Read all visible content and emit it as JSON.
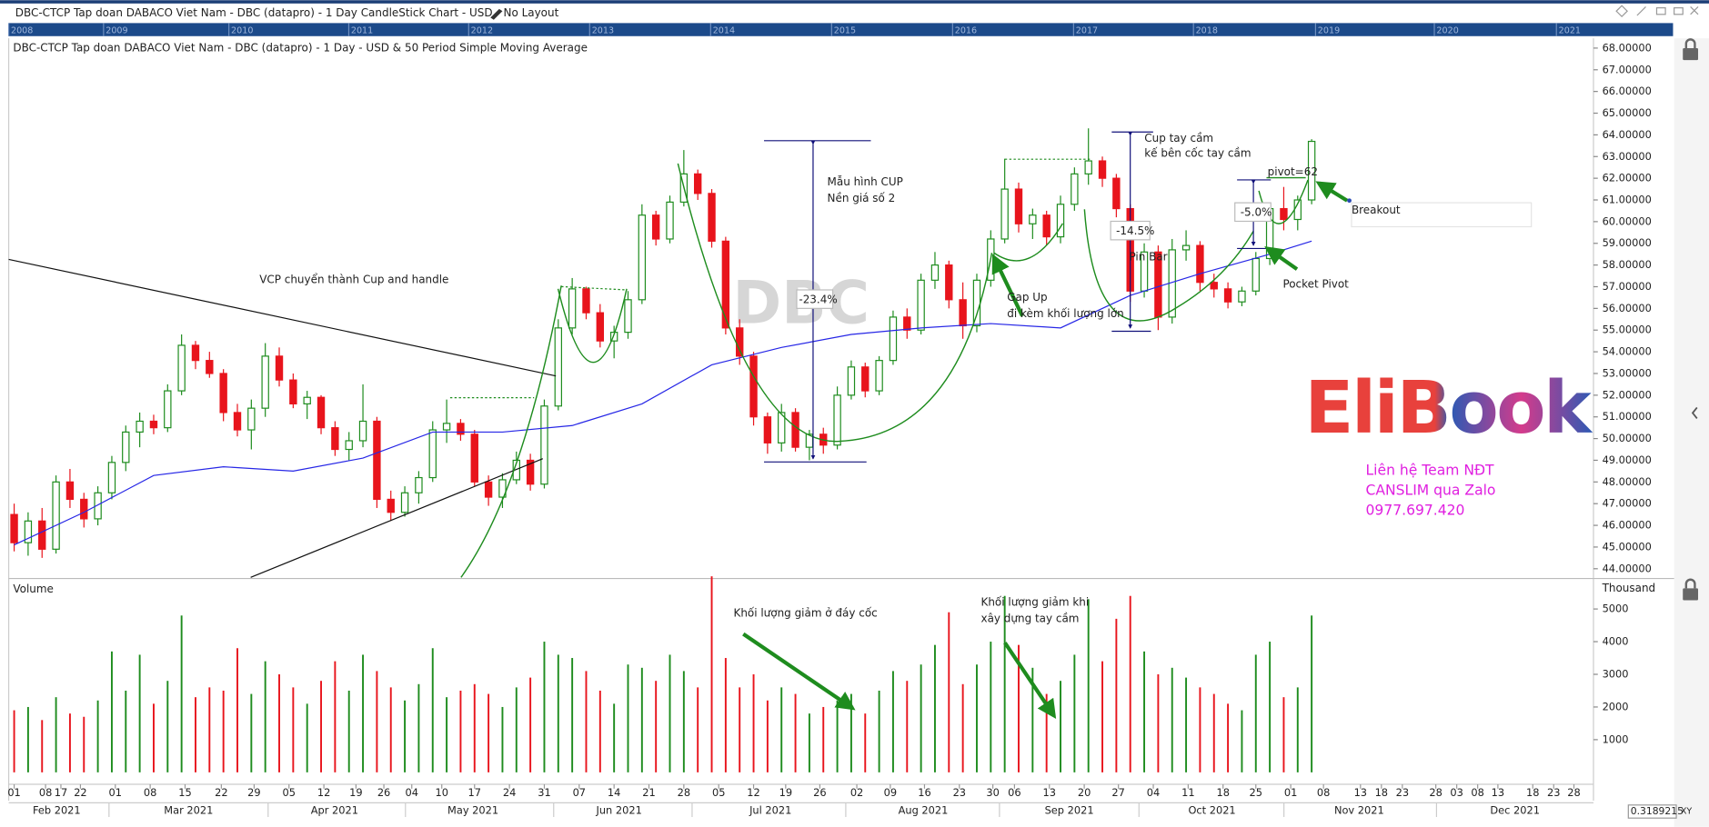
{
  "header": {
    "title": "DBC-CTCP Tap doan DABACO Viet Nam - DBC (datapro) - 1 Day CandleStick Chart - USD - No Layout"
  },
  "navigator_years": [
    "2008",
    "2009",
    "2010",
    "2011",
    "2012",
    "2013",
    "2014",
    "2015",
    "2016",
    "2017",
    "2018",
    "2019",
    "2020",
    "2021"
  ],
  "chart_data": {
    "type": "candlestick",
    "title": "DBC-CTCP Tap doan DABACO Viet Nam - DBC (datapro) - 1 Day - USD & 50 Period Simple Moving Average",
    "up_color": "#1e8c1e",
    "down_color": "#e8141c",
    "x": [
      0,
      2,
      4,
      6,
      8,
      10,
      12,
      14,
      16,
      18,
      20,
      22,
      24,
      26,
      28,
      30,
      32,
      34,
      36,
      38,
      40,
      42,
      44,
      46,
      48,
      50,
      52,
      54,
      56,
      58,
      60,
      62,
      64,
      66,
      68,
      70,
      72,
      74,
      76,
      78,
      80,
      82,
      84,
      86,
      88,
      90,
      92,
      94,
      96,
      98,
      100,
      102,
      104,
      106,
      108,
      110,
      112,
      114,
      116,
      118,
      120,
      122,
      124,
      126,
      128,
      130,
      132,
      134,
      136,
      138,
      140,
      142,
      144,
      146,
      148,
      150,
      152,
      154,
      156,
      158,
      160,
      162,
      164,
      166,
      168,
      170,
      172,
      174,
      176,
      178,
      180,
      182,
      184,
      186
    ],
    "open": [
      46.5,
      45.2,
      46.2,
      44.9,
      48.0,
      47.2,
      46.3,
      47.5,
      48.9,
      50.3,
      50.8,
      50.5,
      52.2,
      54.3,
      53.6,
      53.0,
      51.2,
      50.4,
      51.4,
      53.8,
      52.7,
      51.6,
      51.9,
      50.5,
      49.5,
      49.9,
      50.8,
      47.2,
      46.6,
      47.5,
      48.2,
      50.4,
      50.7,
      50.2,
      48.0,
      47.3,
      48.1,
      49.0,
      47.9,
      51.5,
      55.1,
      56.9,
      55.8,
      54.5,
      54.9,
      56.4,
      60.3,
      59.2,
      60.9,
      62.2,
      61.3,
      59.1,
      55.1,
      53.8,
      51.0,
      49.8,
      51.2,
      49.6,
      50.2,
      49.7,
      52.0,
      53.3,
      52.2,
      53.6,
      55.6,
      55.0,
      57.3,
      58.0,
      56.4,
      55.2,
      57.3,
      59.2,
      61.5,
      59.9,
      60.3,
      59.3,
      60.8,
      62.2,
      62.8,
      62.0,
      60.6,
      56.8,
      58.6,
      55.6,
      58.7,
      58.9,
      57.2,
      56.9,
      56.3,
      56.8,
      58.3,
      60.6,
      60.1,
      61.0
    ],
    "high": [
      47.0,
      46.6,
      46.8,
      48.3,
      48.6,
      47.5,
      47.8,
      49.2,
      50.6,
      51.2,
      51.1,
      52.5,
      54.8,
      54.5,
      54.0,
      53.2,
      51.6,
      51.8,
      54.4,
      54.2,
      53.0,
      52.2,
      52.0,
      50.8,
      50.3,
      52.5,
      51.0,
      47.6,
      47.8,
      48.5,
      50.8,
      51.8,
      50.9,
      50.4,
      48.3,
      48.4,
      49.4,
      49.3,
      51.8,
      55.5,
      57.4,
      57.0,
      56.2,
      55.2,
      56.8,
      60.8,
      60.5,
      61.2,
      63.3,
      62.4,
      61.5,
      59.3,
      55.5,
      54.0,
      51.2,
      51.6,
      51.4,
      50.4,
      50.5,
      52.4,
      53.6,
      53.5,
      53.8,
      55.9,
      56.0,
      57.6,
      58.6,
      58.2,
      57.2,
      57.6,
      59.6,
      62.9,
      61.8,
      60.6,
      60.5,
      61.2,
      62.5,
      64.3,
      63.0,
      62.2,
      60.8,
      59.0,
      58.9,
      59.2,
      59.6,
      59.1,
      57.6,
      57.2,
      57.0,
      58.6,
      60.8,
      61.6,
      61.2,
      63.8
    ],
    "low": [
      44.8,
      44.6,
      44.5,
      44.7,
      46.8,
      45.9,
      46.0,
      47.2,
      48.5,
      49.6,
      50.2,
      50.3,
      52.0,
      53.2,
      52.8,
      50.8,
      50.1,
      49.5,
      51.0,
      52.4,
      51.4,
      50.9,
      50.2,
      49.2,
      49.0,
      49.6,
      46.8,
      46.2,
      46.4,
      47.0,
      48.0,
      49.8,
      49.9,
      47.8,
      46.9,
      46.8,
      47.9,
      47.6,
      47.7,
      51.3,
      54.8,
      55.5,
      54.2,
      53.7,
      54.6,
      56.2,
      58.9,
      59.0,
      60.7,
      61.0,
      58.8,
      54.8,
      53.4,
      50.6,
      49.3,
      49.4,
      49.4,
      49.0,
      49.3,
      49.5,
      51.8,
      51.9,
      52.0,
      53.4,
      54.6,
      54.8,
      56.9,
      56.0,
      54.6,
      54.9,
      57.0,
      59.0,
      59.5,
      59.2,
      58.9,
      59.0,
      60.5,
      61.7,
      61.6,
      60.2,
      56.3,
      56.5,
      55.0,
      55.3,
      58.2,
      56.8,
      56.5,
      56.0,
      56.1,
      56.6,
      58.0,
      59.6,
      59.6,
      60.8
    ],
    "close": [
      45.2,
      46.2,
      44.9,
      48.0,
      47.2,
      46.3,
      47.5,
      48.9,
      50.3,
      50.8,
      50.5,
      52.2,
      54.3,
      53.6,
      53.0,
      51.2,
      50.4,
      51.4,
      53.8,
      52.7,
      51.6,
      51.9,
      50.5,
      49.5,
      49.9,
      50.8,
      47.2,
      46.6,
      47.5,
      48.2,
      50.4,
      50.7,
      50.2,
      48.0,
      47.3,
      48.1,
      49.0,
      47.9,
      51.5,
      55.1,
      56.9,
      55.8,
      54.5,
      54.9,
      56.4,
      60.3,
      59.2,
      60.9,
      62.2,
      61.3,
      59.1,
      55.1,
      53.8,
      51.0,
      49.8,
      51.2,
      49.6,
      50.2,
      49.7,
      52.0,
      53.3,
      52.2,
      53.6,
      55.6,
      55.0,
      57.3,
      58.0,
      56.4,
      55.2,
      57.3,
      59.2,
      61.5,
      59.9,
      60.3,
      59.3,
      60.8,
      62.2,
      62.8,
      62.0,
      60.6,
      56.8,
      58.6,
      55.6,
      58.7,
      58.9,
      57.2,
      56.9,
      56.3,
      56.8,
      58.3,
      60.6,
      60.1,
      61.0,
      63.7
    ],
    "volume": [
      1900,
      2000,
      1600,
      2300,
      1800,
      1700,
      2200,
      3700,
      2500,
      3600,
      2100,
      2800,
      4800,
      2300,
      2600,
      2500,
      3800,
      2400,
      3400,
      3000,
      2600,
      2100,
      2800,
      3400,
      2500,
      3600,
      3100,
      2600,
      2200,
      2700,
      3800,
      2300,
      2500,
      2700,
      2400,
      2000,
      2600,
      2900,
      4000,
      3600,
      3500,
      3100,
      2500,
      2100,
      3300,
      3200,
      2800,
      3600,
      3100,
      2600,
      6000,
      3500,
      2600,
      3000,
      2200,
      2600,
      2400,
      1800,
      2000,
      2200,
      2400,
      1800,
      2500,
      3100,
      2800,
      3300,
      3900,
      4900,
      2700,
      3300,
      4000,
      5400,
      3900,
      3200,
      2400,
      2800,
      3600,
      5300,
      3400,
      4700,
      5400,
      3700,
      3000,
      3200,
      2900,
      2600,
      2400,
      2100,
      1900,
      3600,
      4000,
      2300,
      2600,
      4800
    ],
    "xlim": [
      -0.78,
      226.4
    ],
    "xticks": [
      {
        "value": 0,
        "label": "01"
      },
      {
        "value": 4.5,
        "label": "08"
      },
      {
        "value": 6.7,
        "label": "17"
      },
      {
        "value": 9.5,
        "label": "22"
      },
      {
        "value": 14.5,
        "label": "01"
      },
      {
        "value": 19.5,
        "label": "08"
      },
      {
        "value": 24.5,
        "label": "15"
      },
      {
        "value": 29.7,
        "label": "22"
      },
      {
        "value": 34.4,
        "label": "29"
      },
      {
        "value": 39.4,
        "label": "05"
      },
      {
        "value": 44.4,
        "label": "12"
      },
      {
        "value": 49,
        "label": "19"
      },
      {
        "value": 53,
        "label": "26"
      },
      {
        "value": 57,
        "label": "04"
      },
      {
        "value": 61.3,
        "label": "10"
      },
      {
        "value": 66,
        "label": "17"
      },
      {
        "value": 71,
        "label": "24"
      },
      {
        "value": 76,
        "label": "31"
      },
      {
        "value": 81,
        "label": "07"
      },
      {
        "value": 86,
        "label": "14"
      },
      {
        "value": 91,
        "label": "21"
      },
      {
        "value": 96,
        "label": "28"
      },
      {
        "value": 101,
        "label": "05"
      },
      {
        "value": 106,
        "label": "12"
      },
      {
        "value": 110.6,
        "label": "19"
      },
      {
        "value": 115.5,
        "label": "26"
      },
      {
        "value": 120.8,
        "label": "02"
      },
      {
        "value": 125.6,
        "label": "09"
      },
      {
        "value": 130.5,
        "label": "16"
      },
      {
        "value": 135.5,
        "label": "23"
      },
      {
        "value": 140.3,
        "label": "30"
      },
      {
        "value": 143.4,
        "label": "06"
      },
      {
        "value": 148.4,
        "label": "13"
      },
      {
        "value": 153.4,
        "label": "20"
      },
      {
        "value": 158.3,
        "label": "27"
      },
      {
        "value": 163.3,
        "label": "04"
      },
      {
        "value": 168.3,
        "label": "11"
      },
      {
        "value": 173.3,
        "label": "18"
      },
      {
        "value": 178,
        "label": "25"
      },
      {
        "value": 183,
        "label": "01"
      },
      {
        "value": 187.7,
        "label": "08"
      },
      {
        "value": 193,
        "label": "13"
      },
      {
        "value": 196,
        "label": "18"
      },
      {
        "value": 199,
        "label": "23"
      },
      {
        "value": 203.8,
        "label": "28"
      },
      {
        "value": 206.8,
        "label": "03"
      },
      {
        "value": 209.8,
        "label": "08"
      },
      {
        "value": 212.7,
        "label": "13"
      },
      {
        "value": 217.7,
        "label": "18"
      },
      {
        "value": 220.7,
        "label": "23"
      },
      {
        "value": 223.6,
        "label": "28"
      }
    ],
    "month_labels": [
      "Feb 2021",
      "Mar 2021",
      "Apr 2021",
      "May 2021",
      "Jun 2021",
      "Jul 2021",
      "Aug 2021",
      "Sep 2021",
      "Oct 2021",
      "Nov 2021",
      "Dec 2021"
    ],
    "ylim": [
      43.55,
      68.45
    ],
    "yticks": [
      {
        "value": 68,
        "label": "68.00000"
      },
      {
        "value": 67,
        "label": "67.00000"
      },
      {
        "value": 66,
        "label": "66.00000"
      },
      {
        "value": 65,
        "label": "65.00000"
      },
      {
        "value": 64,
        "label": "64.00000"
      },
      {
        "value": 63,
        "label": "63.00000"
      },
      {
        "value": 62,
        "label": "62.00000"
      },
      {
        "value": 61,
        "label": "61.00000"
      },
      {
        "value": 60,
        "label": "60.00000"
      },
      {
        "value": 59,
        "label": "59.00000"
      },
      {
        "value": 58,
        "label": "58.00000"
      },
      {
        "value": 57,
        "label": "57.00000"
      },
      {
        "value": 56,
        "label": "56.00000"
      },
      {
        "value": 55,
        "label": "55.00000"
      },
      {
        "value": 54,
        "label": "54.00000"
      },
      {
        "value": 53,
        "label": "53.00000"
      },
      {
        "value": 52,
        "label": "52.00000"
      },
      {
        "value": 51,
        "label": "51.00000"
      },
      {
        "value": 50,
        "label": "50.00000"
      },
      {
        "value": 49,
        "label": "49.00000"
      },
      {
        "value": 48,
        "label": "48.00000"
      },
      {
        "value": 47,
        "label": "47.00000"
      },
      {
        "value": 46,
        "label": "46.00000"
      },
      {
        "value": 45,
        "label": "45.00000"
      },
      {
        "value": 44,
        "label": "44.00000"
      }
    ],
    "sma": {
      "color": "#2626e6",
      "x": [
        0,
        10,
        20,
        30,
        40,
        50,
        60,
        70,
        80,
        90,
        100,
        110,
        120,
        130,
        140,
        150,
        160,
        170,
        180,
        186
      ],
      "values": [
        45.1,
        46.6,
        48.3,
        48.7,
        48.5,
        49.1,
        50.3,
        50.3,
        50.6,
        51.6,
        53.4,
        54.2,
        54.8,
        55.1,
        55.3,
        55.1,
        56.6,
        57.6,
        58.5,
        59.1
      ]
    },
    "volume_panel": {
      "label": "Volume",
      "unit_label": "Thousand",
      "ylim": [
        0,
        6000
      ],
      "yticks": [
        1000,
        2000,
        3000,
        4000,
        5000
      ]
    },
    "watermark": "DBC",
    "annotations": [
      "VCP chuyển thành Cup and handle",
      "Mẫu hình CUP",
      "Nền giá số 2",
      "-23.4%",
      "Gap Up",
      "đi kèm khối lượng lớn",
      "Cup tay cầm",
      "kế bên cốc tay cầm",
      "-14.5%",
      "Pin Bar",
      "-5.0%",
      "pivot=62",
      "Breakout",
      "Pocket Pivot",
      "Khối lượng giảm ở đáy cốc",
      "Khối lượng giảm khi",
      "xây dựng tay cầm"
    ]
  },
  "contact": {
    "logo": "EliBook",
    "lines": [
      "Liên hệ Team NĐT",
      "CANSLIM qua Zalo",
      "0977.697.420"
    ]
  },
  "footer": {
    "readout": "0.3189215",
    "mode": "XY"
  }
}
